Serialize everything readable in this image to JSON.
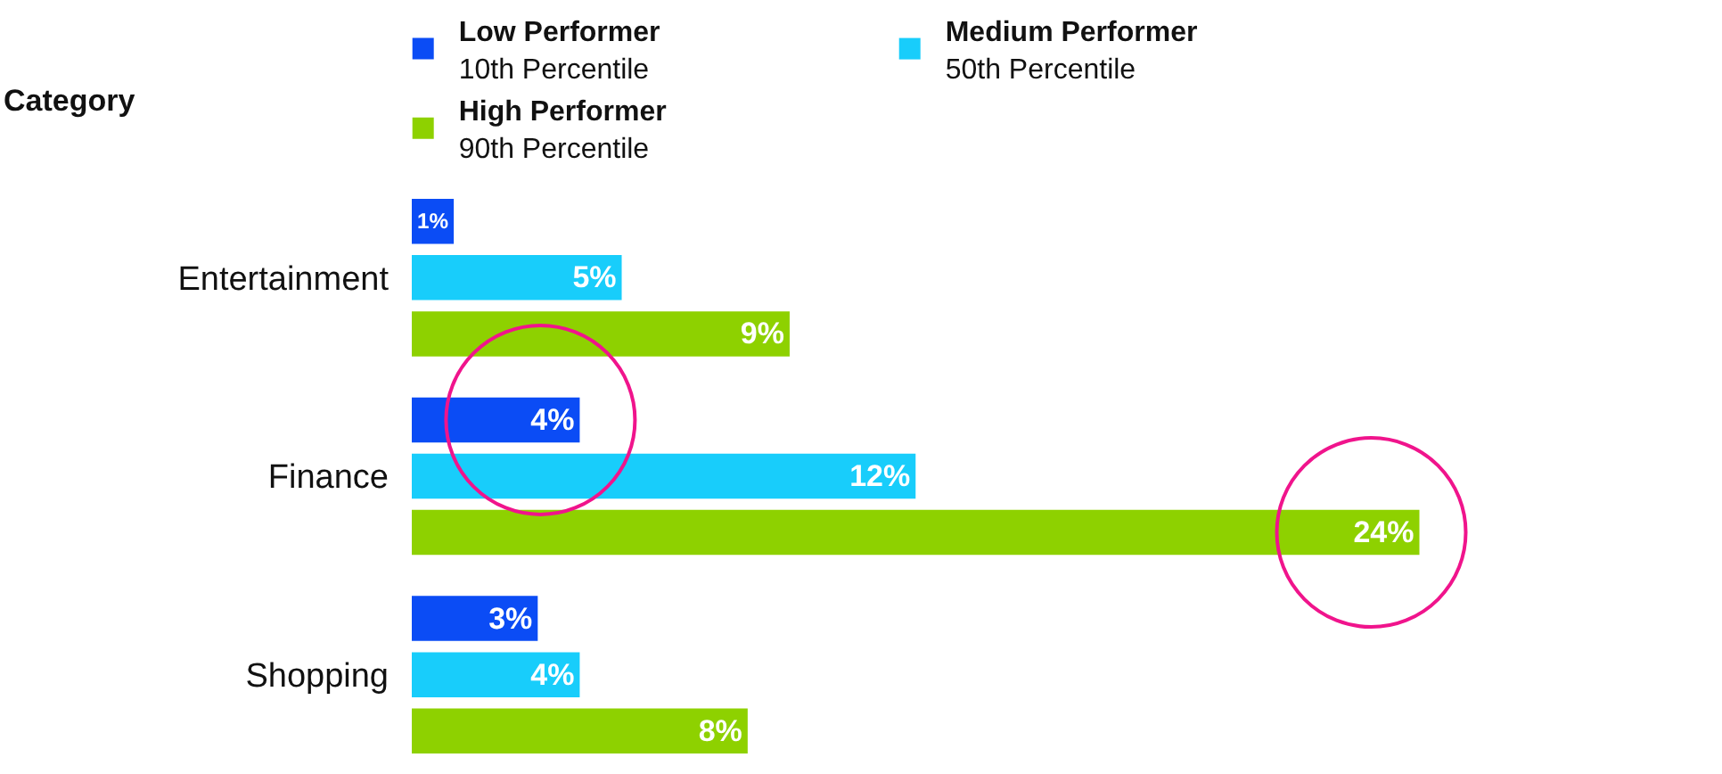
{
  "chart_data": {
    "type": "bar",
    "orientation": "horizontal",
    "ylabel": "Category",
    "categories": [
      "Entertainment",
      "Finance",
      "Shopping"
    ],
    "series": [
      {
        "name": "Low Performer",
        "color": "#0b4cf5",
        "values": [
          1,
          4,
          3
        ],
        "value_labels": [
          "1%",
          "4%",
          "3%"
        ]
      },
      {
        "name": "Medium Performer",
        "color": "#18cdfb",
        "values": [
          5,
          12,
          4
        ],
        "value_labels": [
          "5%",
          "12%",
          "4%"
        ]
      },
      {
        "name": "High Performer",
        "color": "#8ed100",
        "values": [
          9,
          24,
          8
        ],
        "value_labels": [
          "9%",
          "24%",
          "8%"
        ]
      }
    ],
    "annotations": [
      "10th Percentile",
      "50th Percentile",
      "90th Percentile"
    ],
    "tick_labels": "y",
    "legend": "top"
  }
}
